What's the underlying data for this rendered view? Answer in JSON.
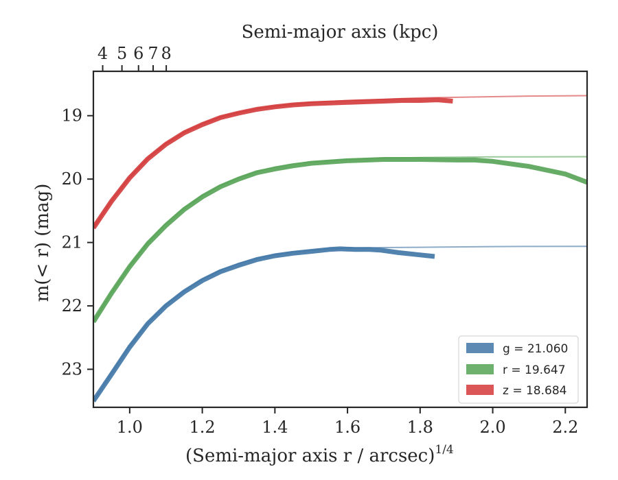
{
  "chart_data": {
    "type": "line",
    "xlabel": "(Semi-major axis r / arcsec)",
    "xlabel_exponent": "1/4",
    "ylabel": "m(< r) (mag)",
    "top_xlabel": "Semi-major axis (kpc)",
    "xlim": [
      0.9,
      2.26
    ],
    "ylim": [
      23.6,
      18.3
    ],
    "y_inverted": true,
    "x_ticks": [
      1.0,
      1.2,
      1.4,
      1.6,
      1.8,
      2.0,
      2.2
    ],
    "x_tick_labels": [
      "1.0",
      "1.2",
      "1.4",
      "1.6",
      "1.8",
      "2.0",
      "2.2"
    ],
    "y_ticks": [
      19,
      20,
      21,
      22,
      23
    ],
    "y_tick_labels": [
      "19",
      "20",
      "21",
      "22",
      "23"
    ],
    "top_ticks": [
      4,
      5,
      6,
      7,
      8
    ],
    "top_tick_labels": [
      "4",
      "5",
      "6",
      "7",
      "8"
    ],
    "grid": false,
    "legend_position": "bottom-right",
    "series": [
      {
        "name": "g = 21.060",
        "band": "g",
        "value": "21.060",
        "color": "#3f75a6",
        "x": [
          0.9,
          0.95,
          1.0,
          1.05,
          1.1,
          1.15,
          1.2,
          1.25,
          1.3,
          1.35,
          1.4,
          1.45,
          1.5,
          1.55,
          1.58,
          1.62,
          1.66,
          1.69,
          1.74,
          1.79,
          1.84
        ],
        "y": [
          23.5,
          23.08,
          22.65,
          22.28,
          22.0,
          21.78,
          21.6,
          21.46,
          21.36,
          21.27,
          21.21,
          21.17,
          21.14,
          21.11,
          21.1,
          21.11,
          21.11,
          21.12,
          21.16,
          21.19,
          21.22
        ],
        "model_x": [
          0.9,
          0.95,
          1.0,
          1.05,
          1.1,
          1.15,
          1.2,
          1.25,
          1.3,
          1.35,
          1.4,
          1.45,
          1.5,
          1.55,
          1.6,
          1.7,
          1.8,
          1.9,
          2.0,
          2.1,
          2.26
        ],
        "model_y": [
          23.5,
          23.06,
          22.63,
          22.27,
          21.98,
          21.76,
          21.58,
          21.44,
          21.33,
          21.25,
          21.19,
          21.15,
          21.12,
          21.1,
          21.09,
          21.08,
          21.075,
          21.07,
          21.065,
          21.063,
          21.06
        ]
      },
      {
        "name": "r = 19.647",
        "band": "r",
        "value": "19.647",
        "color": "#55a355",
        "x": [
          0.9,
          0.95,
          1.0,
          1.05,
          1.1,
          1.15,
          1.2,
          1.25,
          1.3,
          1.35,
          1.4,
          1.45,
          1.5,
          1.6,
          1.7,
          1.8,
          1.9,
          1.95,
          2.0,
          2.1,
          2.2,
          2.26
        ],
        "y": [
          22.25,
          21.8,
          21.38,
          21.02,
          20.73,
          20.48,
          20.28,
          20.12,
          20.0,
          19.9,
          19.84,
          19.79,
          19.75,
          19.71,
          19.69,
          19.69,
          19.7,
          19.7,
          19.72,
          19.8,
          19.92,
          20.05
        ],
        "model_x": [
          0.9,
          0.95,
          1.0,
          1.05,
          1.1,
          1.15,
          1.2,
          1.25,
          1.3,
          1.35,
          1.4,
          1.45,
          1.5,
          1.6,
          1.7,
          1.8,
          1.9,
          2.0,
          2.1,
          2.26
        ],
        "model_y": [
          22.25,
          21.79,
          21.37,
          21.0,
          20.7,
          20.46,
          20.26,
          20.1,
          19.98,
          19.88,
          19.81,
          19.76,
          19.73,
          19.69,
          19.67,
          19.66,
          19.655,
          19.65,
          19.649,
          19.647
        ]
      },
      {
        "name": "z = 18.684",
        "band": "z",
        "value": "18.684",
        "color": "#d3383a",
        "x": [
          0.9,
          0.95,
          1.0,
          1.05,
          1.1,
          1.15,
          1.2,
          1.25,
          1.3,
          1.35,
          1.4,
          1.45,
          1.5,
          1.55,
          1.6,
          1.65,
          1.7,
          1.75,
          1.8,
          1.85,
          1.89
        ],
        "y": [
          20.77,
          20.35,
          19.98,
          19.68,
          19.45,
          19.27,
          19.14,
          19.03,
          18.96,
          18.9,
          18.86,
          18.83,
          18.81,
          18.8,
          18.79,
          18.78,
          18.77,
          18.76,
          18.76,
          18.75,
          18.77
        ],
        "model_x": [
          0.9,
          0.95,
          1.0,
          1.05,
          1.1,
          1.15,
          1.2,
          1.25,
          1.3,
          1.35,
          1.4,
          1.45,
          1.5,
          1.6,
          1.7,
          1.8,
          1.9,
          2.0,
          2.1,
          2.26
        ],
        "model_y": [
          20.77,
          20.34,
          19.97,
          19.67,
          19.44,
          19.26,
          19.13,
          19.02,
          18.95,
          18.89,
          18.85,
          18.82,
          18.79,
          18.76,
          18.74,
          18.72,
          18.71,
          18.7,
          18.69,
          18.684
        ]
      }
    ]
  }
}
